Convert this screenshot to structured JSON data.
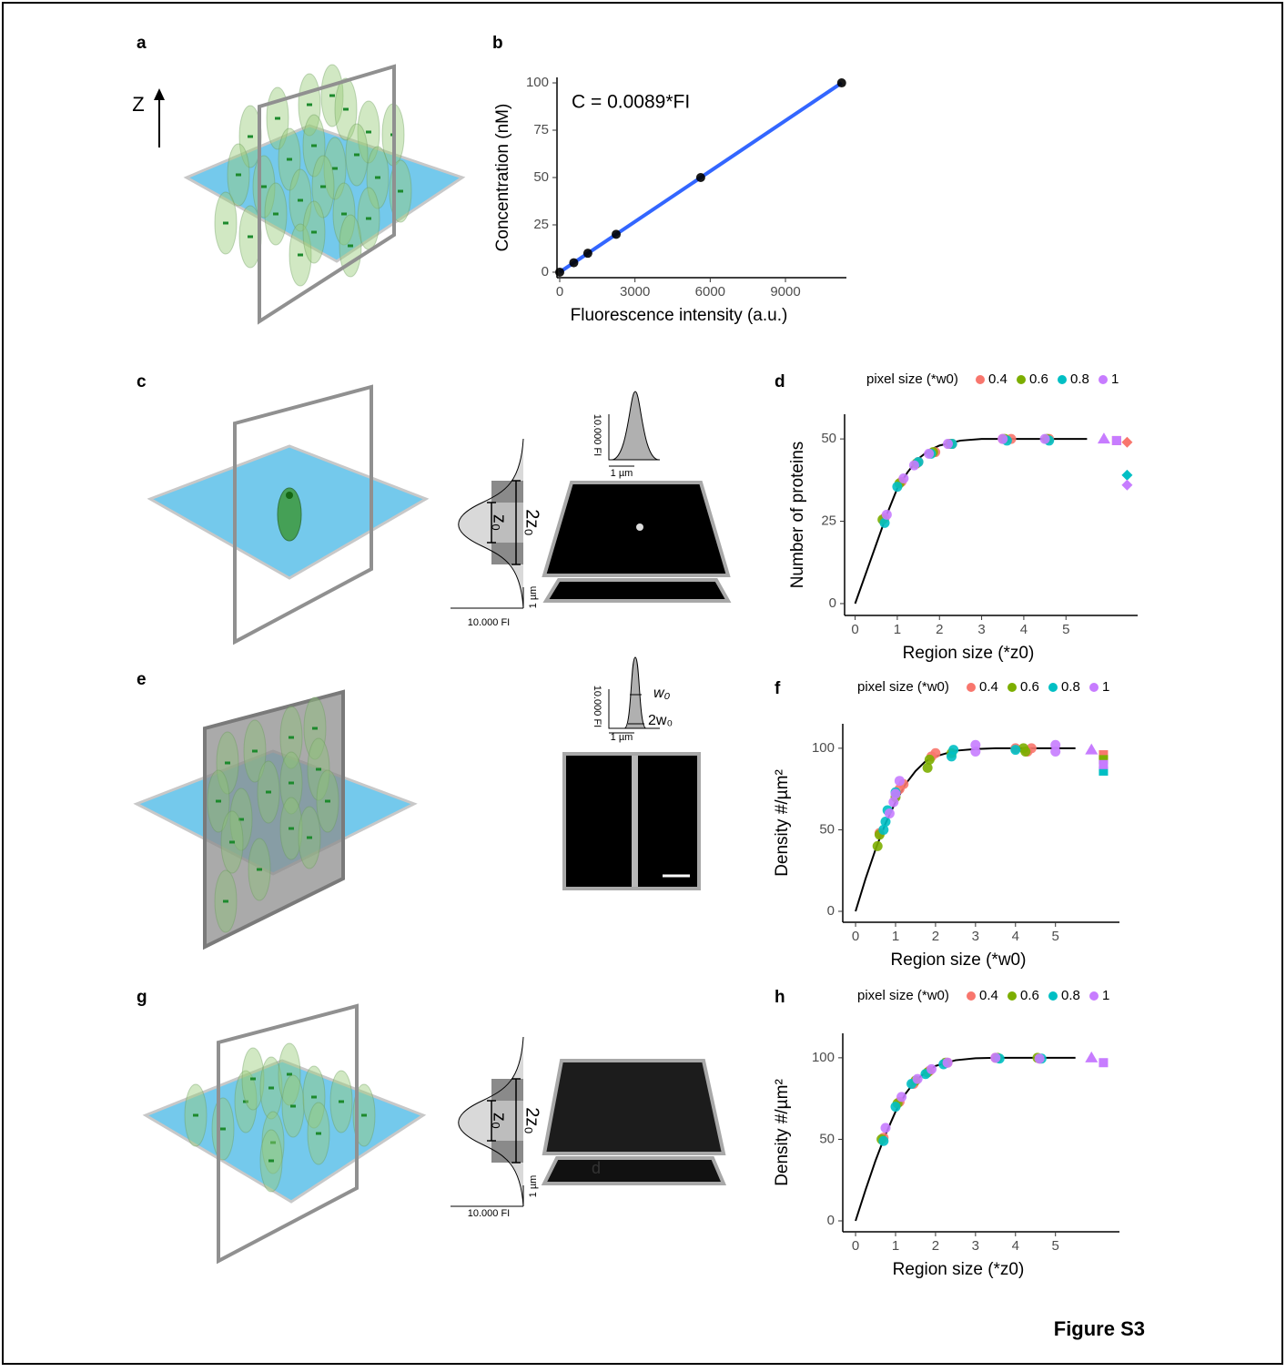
{
  "figure_label": "Figure S3",
  "panel_labels": [
    "a",
    "b",
    "c",
    "d",
    "e",
    "f",
    "g",
    "h"
  ],
  "illustrations": {
    "a": {
      "axis": "Z"
    },
    "c": {
      "z0": "z₀",
      "two_z0": "2z₀",
      "profile_um": "1 µm",
      "profile_fi": "10.000 FI",
      "psf_fi": "10.000 FI",
      "psf_um": "1 µm"
    },
    "e": {
      "w0": "w₀",
      "two_w0": "2w₀",
      "psf_fi": "10.000 FI",
      "psf_um": "1 µm"
    },
    "g": {
      "z0": "z₀",
      "two_z0": "2z₀",
      "profile_um": "1 µm",
      "profile_fi": "10.000 FI",
      "mark": "d"
    }
  },
  "chart_data": [
    {
      "type": "scatter",
      "annotation": "C = 0.0089*FI",
      "x_label": "Fluorescence intensity (a.u.)",
      "y_label": "Concentration (nM)",
      "xlim": [
        -109,
        11430
      ],
      "ylim": [
        -2.9,
        102.9
      ],
      "xticks": [
        0,
        3000,
        6000,
        9000
      ],
      "yticks": [
        0,
        25,
        50,
        75,
        100
      ],
      "fit": {
        "color": "#3366ff",
        "x": [
          0,
          11240
        ],
        "y": [
          0,
          100
        ]
      },
      "series": [
        {
          "color": "#000000",
          "x": [
            0,
            560,
            1120,
            2250,
            5620,
            11240
          ],
          "values": [
            0,
            5,
            10,
            20,
            50,
            100
          ]
        }
      ]
    },
    {
      "type": "scatter",
      "legend_title": "pixel size (*w0)",
      "legend": "top",
      "x_label": "Region size (*z0)",
      "y_label": "Number of proteins",
      "xlim": [
        -0.25,
        6.7
      ],
      "ylim": [
        -3.6,
        57.5
      ],
      "xticks": [
        0,
        1,
        2,
        3,
        4,
        5
      ],
      "yticks": [
        0,
        25,
        50
      ],
      "fit": {
        "color": "#000000",
        "x": [
          0,
          0.25,
          0.5,
          0.75,
          1,
          1.25,
          1.5,
          1.75,
          2,
          2.5,
          3,
          3.5,
          4,
          5.5
        ],
        "y": [
          0,
          9,
          18,
          27,
          35,
          40,
          44,
          46.5,
          48,
          49.5,
          50,
          50,
          50,
          50
        ]
      },
      "series": [
        {
          "name": "0.4",
          "color": "#f8766d",
          "x": [
            0.7,
            1.1,
            1.5,
            1.9,
            2.3,
            3.5,
            3.7,
            4.6
          ],
          "values": [
            26,
            37,
            43,
            46,
            48.5,
            50,
            50,
            50
          ],
          "markers": {
            "shape": [
              "square",
              "diamond"
            ],
            "x": [
              6.2,
              6.45
            ],
            "values": [
              49.5,
              49
            ]
          }
        },
        {
          "name": "0.6",
          "color": "#7cae00",
          "x": [
            0.65,
            1.05,
            1.45,
            1.85,
            2.25,
            3.55,
            4.55
          ],
          "values": [
            25.5,
            36.5,
            42.5,
            46,
            48.5,
            50,
            50
          ]
        },
        {
          "name": "0.8",
          "color": "#00bfc4",
          "x": [
            0.7,
            1.0,
            1.5,
            1.8,
            2.3,
            3.6,
            4.6
          ],
          "values": [
            24.5,
            35.5,
            43,
            45.5,
            48.5,
            49.5,
            49.5
          ],
          "markers": {
            "shape": [
              "diamond"
            ],
            "x": [
              6.45
            ],
            "values": [
              39
            ]
          }
        },
        {
          "name": "1",
          "color": "#c77cff",
          "x": [
            0.75,
            1.15,
            1.4,
            1.75,
            2.2,
            3.5,
            4.5
          ],
          "values": [
            27,
            38,
            42,
            45.5,
            48.5,
            50,
            50
          ],
          "markers": {
            "shape": [
              "triangle",
              "square",
              "diamond"
            ],
            "x": [
              5.9,
              6.2,
              6.45
            ],
            "values": [
              50,
              49.5,
              36
            ]
          }
        }
      ]
    },
    {
      "type": "scatter",
      "legend_title": "pixel size (*w0)",
      "legend": "top",
      "x_label": "Region size (*w0)",
      "y_label": "Density #/µm²",
      "xlim": [
        -0.32,
        6.6
      ],
      "ylim": [
        -6.7,
        115
      ],
      "xticks": [
        0,
        1,
        2,
        3,
        4,
        5
      ],
      "yticks": [
        0,
        50,
        100
      ],
      "fit": {
        "color": "#000000",
        "x": [
          0,
          0.25,
          0.5,
          0.75,
          1,
          1.25,
          1.5,
          1.75,
          2,
          2.5,
          3,
          3.5,
          5.5
        ],
        "y": [
          0,
          20,
          38,
          54,
          67,
          78,
          86,
          92,
          95,
          98.5,
          99.5,
          100,
          100
        ]
      },
      "series": [
        {
          "name": "0.4",
          "color": "#f8766d",
          "x": [
            0.6,
            1.1,
            1.2,
            1.9,
            2.0,
            4.0,
            4.3,
            4.4
          ],
          "values": [
            48,
            75,
            78,
            95,
            97,
            100,
            98,
            100
          ],
          "markers": {
            "shape": [
              "square"
            ],
            "x": [
              6.2
            ],
            "values": [
              96
            ]
          }
        },
        {
          "name": "0.6",
          "color": "#7cae00",
          "x": [
            0.55,
            0.6,
            1.0,
            1.8,
            1.85,
            2.4,
            4.2,
            4.25
          ],
          "values": [
            40,
            47,
            70,
            88,
            93,
            97,
            100,
            98
          ],
          "markers": {
            "shape": [
              "square"
            ],
            "x": [
              6.2
            ],
            "values": [
              93
            ]
          }
        },
        {
          "name": "0.8",
          "color": "#00bfc4",
          "x": [
            0.7,
            0.75,
            0.8,
            1.0,
            2.4,
            2.45,
            4.0
          ],
          "values": [
            50,
            55,
            62,
            73,
            95,
            99,
            99
          ],
          "markers": {
            "shape": [
              "square"
            ],
            "x": [
              6.2
            ],
            "values": [
              86
            ]
          }
        },
        {
          "name": "1",
          "color": "#c77cff",
          "x": [
            0.85,
            0.95,
            1.0,
            1.1,
            3.0,
            3.0,
            5.0,
            5.0
          ],
          "values": [
            60,
            67,
            72,
            80,
            98,
            102,
            98,
            102
          ],
          "markers": {
            "shape": [
              "triangle",
              "square"
            ],
            "x": [
              5.9,
              6.2
            ],
            "values": [
              99,
              90
            ]
          }
        }
      ]
    },
    {
      "type": "scatter",
      "legend_title": "pixel size (*w0)",
      "legend": "top",
      "x_label": "Region size (*z0)",
      "y_label": "Density #/µm²",
      "xlim": [
        -0.32,
        6.6
      ],
      "ylim": [
        -6.7,
        115
      ],
      "xticks": [
        0,
        1,
        2,
        3,
        4,
        5
      ],
      "yticks": [
        0,
        50,
        100
      ],
      "fit": {
        "color": "#000000",
        "x": [
          0,
          0.25,
          0.5,
          0.75,
          1,
          1.25,
          1.5,
          1.75,
          2,
          2.5,
          3,
          3.5,
          4,
          5.5
        ],
        "y": [
          0,
          19,
          37,
          53,
          67,
          78,
          86,
          91,
          95,
          98.5,
          99.7,
          100,
          100,
          100
        ]
      },
      "series": [
        {
          "name": "0.4",
          "color": "#f8766d",
          "x": [
            0.7,
            1.1,
            1.45,
            1.85,
            2.3,
            3.5,
            4.6
          ],
          "values": [
            51,
            73,
            84,
            92,
            97,
            100,
            99.5
          ]
        },
        {
          "name": "0.6",
          "color": "#7cae00",
          "x": [
            0.65,
            1.05,
            1.5,
            1.8,
            2.25,
            3.55,
            4.55
          ],
          "values": [
            50,
            72,
            86,
            91,
            97,
            100,
            100
          ]
        },
        {
          "name": "0.8",
          "color": "#00bfc4",
          "x": [
            0.7,
            1.0,
            1.4,
            1.75,
            2.2,
            3.6,
            4.65
          ],
          "values": [
            49,
            70,
            84,
            90,
            96,
            99.5,
            99.5
          ]
        },
        {
          "name": "1",
          "color": "#c77cff",
          "x": [
            0.75,
            1.15,
            1.55,
            1.9,
            2.3,
            3.5,
            4.6
          ],
          "values": [
            57,
            76,
            87,
            93,
            97,
            100,
            99.5
          ],
          "markers": {
            "shape": [
              "triangle",
              "square"
            ],
            "x": [
              5.9,
              6.2
            ],
            "values": [
              100,
              97
            ]
          }
        }
      ]
    }
  ]
}
